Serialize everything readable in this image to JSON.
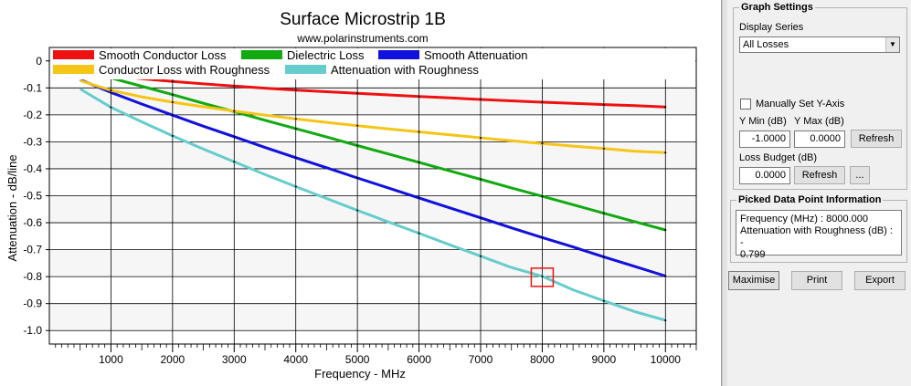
{
  "chart_data": {
    "type": "line",
    "title": "Surface Microstrip 1B",
    "subtitle": "www.polarinstruments.com",
    "xlabel": "Frequency - MHz",
    "ylabel": "Attenuation - dB/line",
    "xlim": [
      0,
      10500
    ],
    "ylim": [
      -1.05,
      0.05
    ],
    "x_ticks": [
      1000,
      2000,
      3000,
      4000,
      5000,
      6000,
      7000,
      8000,
      9000,
      10000
    ],
    "y_ticks": [
      0,
      -0.1,
      -0.2,
      -0.3,
      -0.4,
      -0.5,
      -0.6,
      -0.7,
      -0.8,
      -0.9,
      -1.0
    ],
    "y_tick_labels": [
      "0",
      "-0.1",
      "-0.2",
      "-0.3",
      "-0.4",
      "-0.5",
      "-0.6",
      "-0.7",
      "-0.8",
      "-0.9",
      "-1.0"
    ],
    "grid": true,
    "legend_position": "top",
    "x": [
      500,
      1000,
      1500,
      2000,
      2500,
      3000,
      3500,
      4000,
      4500,
      5000,
      5500,
      6000,
      6500,
      7000,
      7500,
      8000,
      8500,
      9000,
      9500,
      10000
    ],
    "series": [
      {
        "name": "Smooth Conductor Loss",
        "color": "#ee1111",
        "values": [
          -0.038,
          -0.054,
          -0.066,
          -0.076,
          -0.085,
          -0.093,
          -0.101,
          -0.108,
          -0.114,
          -0.12,
          -0.126,
          -0.132,
          -0.137,
          -0.143,
          -0.148,
          -0.153,
          -0.157,
          -0.162,
          -0.166,
          -0.171
        ]
      },
      {
        "name": "Dielectric Loss",
        "color": "#11aa11",
        "values": [
          -0.031,
          -0.063,
          -0.094,
          -0.125,
          -0.157,
          -0.188,
          -0.22,
          -0.251,
          -0.282,
          -0.314,
          -0.345,
          -0.376,
          -0.408,
          -0.439,
          -0.471,
          -0.502,
          -0.533,
          -0.565,
          -0.596,
          -0.627
        ]
      },
      {
        "name": "Smooth Attenuation",
        "color": "#1111dd",
        "values": [
          -0.069,
          -0.117,
          -0.16,
          -0.201,
          -0.242,
          -0.281,
          -0.321,
          -0.359,
          -0.396,
          -0.434,
          -0.471,
          -0.508,
          -0.545,
          -0.582,
          -0.619,
          -0.655,
          -0.69,
          -0.727,
          -0.762,
          -0.798
        ]
      },
      {
        "name": "Conductor Loss with Roughness",
        "color": "#f5c518",
        "values": [
          -0.073,
          -0.109,
          -0.133,
          -0.153,
          -0.17,
          -0.186,
          -0.201,
          -0.215,
          -0.228,
          -0.24,
          -0.252,
          -0.263,
          -0.274,
          -0.285,
          -0.296,
          -0.306,
          -0.316,
          -0.325,
          -0.335,
          -0.34
        ]
      },
      {
        "name": "Attenuation with Roughness",
        "color": "#66cccc",
        "values": [
          -0.104,
          -0.172,
          -0.226,
          -0.278,
          -0.327,
          -0.374,
          -0.421,
          -0.466,
          -0.51,
          -0.554,
          -0.597,
          -0.639,
          -0.682,
          -0.724,
          -0.766,
          -0.799,
          -0.849,
          -0.89,
          -0.93,
          -0.962
        ]
      }
    ],
    "picked_point": {
      "x": 8000,
      "y": -0.799
    }
  },
  "graph_settings": {
    "title": "Graph Settings",
    "display_series_label": "Display Series",
    "display_series_value": "All Losses",
    "manual_y_axis_label": "Manually Set Y-Axis",
    "manual_y_axis_checked": false,
    "ymin_label": "Y Min (dB)",
    "ymax_label": "Y Max (dB)",
    "ymin_value": "-1.0000",
    "ymax_value": "0.0000",
    "refresh_label": "Refresh",
    "loss_budget_label": "Loss Budget (dB)",
    "loss_budget_value": "0.0000",
    "loss_refresh_label": "Refresh",
    "ellipsis_label": "..."
  },
  "picked_info": {
    "title": "Picked Data Point Information",
    "text": "Frequency (MHz) : 8000.000\nAttenuation with Roughness (dB) : -\n0.799"
  },
  "buttons": {
    "maximise": "Maximise",
    "print": "Print",
    "export": "Export"
  }
}
